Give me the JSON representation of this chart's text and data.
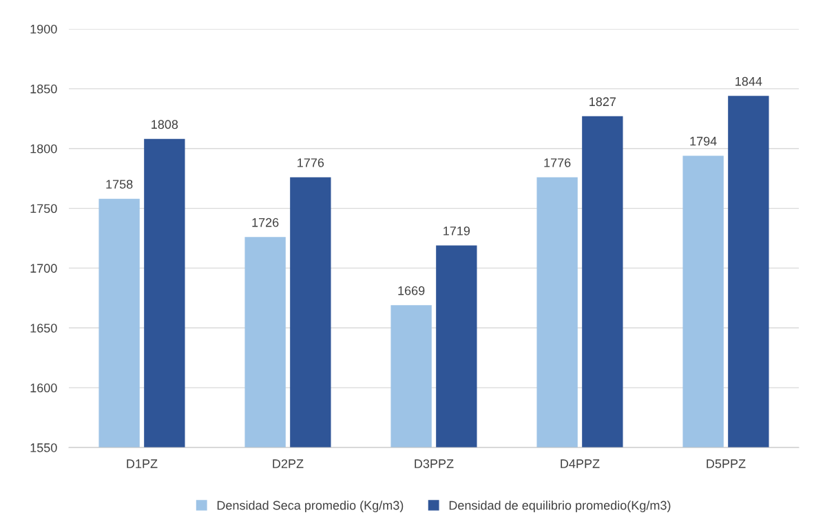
{
  "chart_data": {
    "type": "bar",
    "categories": [
      "D1PZ",
      "D2PZ",
      "D3PPZ",
      "D4PPZ",
      "D5PPZ"
    ],
    "series": [
      {
        "name": "Densidad Seca promedio (Kg/m3)",
        "color": "#9dc3e6",
        "values": [
          1758,
          1726,
          1669,
          1776,
          1794
        ]
      },
      {
        "name": "Densidad de equilibrio promedio(Kg/m3)",
        "color": "#2f5597",
        "values": [
          1808,
          1776,
          1719,
          1827,
          1844
        ]
      }
    ],
    "ylim": [
      1550,
      1900
    ],
    "yticks": [
      1550,
      1600,
      1650,
      1700,
      1750,
      1800,
      1850,
      1900
    ],
    "grid": "y",
    "legend": "bottom",
    "data_labels": true
  }
}
